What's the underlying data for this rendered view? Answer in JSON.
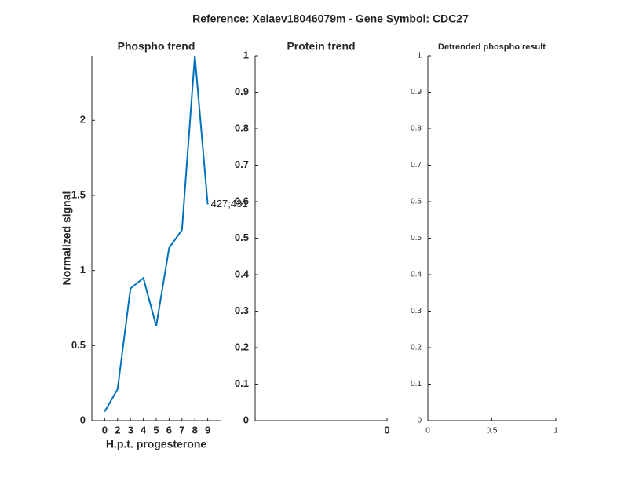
{
  "figure_title": "Reference:  Xelaev18046079m - Gene Symbol:  CDC27",
  "chart_data": [
    {
      "type": "line",
      "title": "Phospho trend",
      "xlabel": "H.p.t. progesterone",
      "ylabel": "Normalized signal",
      "categories": [
        "0",
        "2",
        "3",
        "4",
        "5",
        "6",
        "7",
        "8",
        "9"
      ],
      "series": [
        {
          "name": "427;431",
          "color": "#0072bd",
          "values": [
            0.06,
            0.21,
            0.88,
            0.95,
            0.63,
            1.15,
            1.27,
            2.43,
            1.44
          ]
        }
      ],
      "annotation": "427;431",
      "ylim": [
        0,
        2.43
      ],
      "yticks": [
        0,
        0.5,
        1,
        1.5,
        2
      ]
    },
    {
      "type": "line",
      "title": "Protein trend",
      "series": [],
      "xlim": [
        -1,
        0
      ],
      "xticks": [
        0
      ],
      "ylim": [
        0,
        1
      ],
      "yticks": [
        0,
        0.1,
        0.2,
        0.3,
        0.4,
        0.5,
        0.6,
        0.7,
        0.8,
        0.9,
        1
      ]
    },
    {
      "type": "line",
      "title": "Detrended phospho result",
      "series": [],
      "xlim": [
        0,
        1
      ],
      "xticks": [
        0,
        0.5,
        1
      ],
      "ylim": [
        0,
        1
      ],
      "yticks": [
        0,
        0.1,
        0.2,
        0.3,
        0.4,
        0.5,
        0.6,
        0.7,
        0.8,
        0.9,
        1
      ]
    }
  ]
}
